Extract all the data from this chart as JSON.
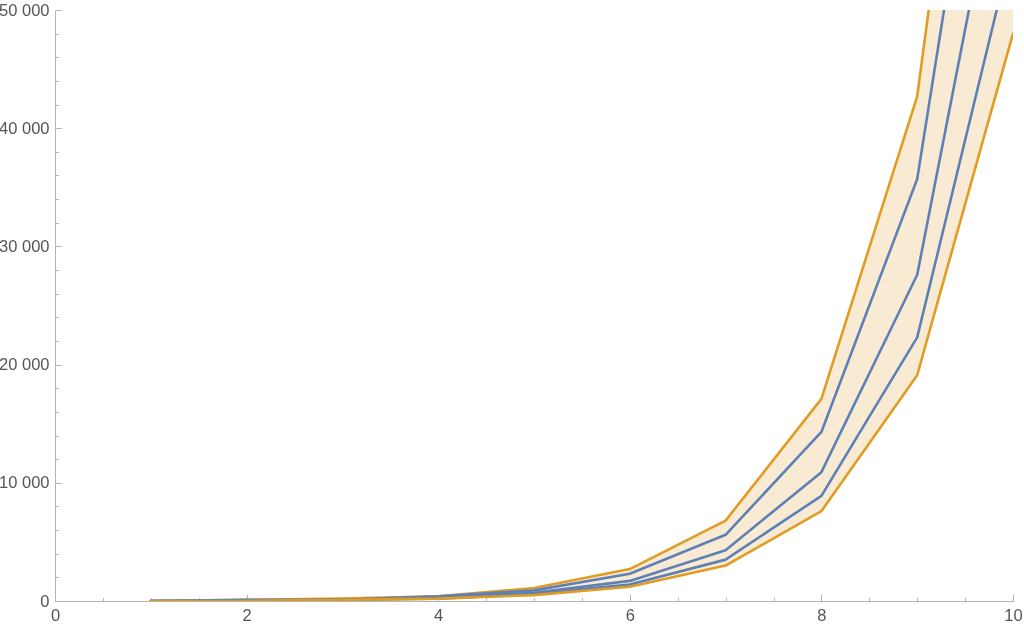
{
  "chart_data": {
    "type": "line",
    "xlim": [
      0,
      10
    ],
    "ylim": [
      0,
      50000
    ],
    "xticks": [
      0,
      {
        "value": 0.5,
        "label": null
      },
      {
        "value": 1,
        "label": null
      },
      {
        "value": 1.5,
        "label": null
      },
      2,
      {
        "value": 2.5,
        "label": null
      },
      {
        "value": 3,
        "label": null
      },
      {
        "value": 3.5,
        "label": null
      },
      4,
      {
        "value": 4.5,
        "label": null
      },
      {
        "value": 5,
        "label": null
      },
      {
        "value": 5.5,
        "label": null
      },
      6,
      {
        "value": 6.5,
        "label": null
      },
      {
        "value": 7,
        "label": null
      },
      {
        "value": 7.5,
        "label": null
      },
      8,
      {
        "value": 8.5,
        "label": null
      },
      {
        "value": 9,
        "label": null
      },
      {
        "value": 9.5,
        "label": null
      },
      10
    ],
    "yticks": [
      0,
      {
        "value": 2000,
        "label": null
      },
      {
        "value": 4000,
        "label": null
      },
      {
        "value": 6000,
        "label": null
      },
      {
        "value": 8000,
        "label": null
      },
      {
        "value": 10000,
        "label": "10 000"
      },
      {
        "value": 12000,
        "label": null
      },
      {
        "value": 14000,
        "label": null
      },
      {
        "value": 16000,
        "label": null
      },
      {
        "value": 18000,
        "label": null
      },
      {
        "value": 20000,
        "label": "20 000"
      },
      {
        "value": 22000,
        "label": null
      },
      {
        "value": 24000,
        "label": null
      },
      {
        "value": 26000,
        "label": null
      },
      {
        "value": 28000,
        "label": null
      },
      {
        "value": 30000,
        "label": "30 000"
      },
      {
        "value": 32000,
        "label": null
      },
      {
        "value": 34000,
        "label": null
      },
      {
        "value": 36000,
        "label": null
      },
      {
        "value": 38000,
        "label": null
      },
      {
        "value": 40000,
        "label": "40 000"
      },
      {
        "value": 42000,
        "label": null
      },
      {
        "value": 44000,
        "label": null
      },
      {
        "value": 46000,
        "label": null
      },
      {
        "value": 48000,
        "label": null
      },
      {
        "value": 50000,
        "label": "50 000"
      }
    ],
    "series": [
      {
        "color": "#e19c24",
        "x": [
          1,
          2,
          3,
          4,
          5,
          6,
          7,
          8,
          9,
          9.12
        ],
        "values": [
          0,
          100,
          200,
          400,
          1100,
          2700,
          6800,
          17100,
          42700,
          50000
        ]
      },
      {
        "color": "#5e81b5",
        "x": [
          1,
          2,
          3,
          4,
          5,
          6,
          7,
          8,
          9,
          9.28
        ],
        "values": [
          0,
          100,
          100,
          400,
          900,
          2300,
          5600,
          14300,
          35700,
          50000
        ]
      },
      {
        "color": "#5e81b5",
        "x": [
          1,
          2,
          3,
          4,
          5,
          6,
          7,
          8,
          9,
          9.54
        ],
        "values": [
          0,
          0,
          100,
          300,
          700,
          1700,
          4300,
          10900,
          27600,
          50000
        ]
      },
      {
        "color": "#5e81b5",
        "x": [
          1,
          2,
          3,
          4,
          5,
          6,
          7,
          8,
          9,
          9.83
        ],
        "values": [
          0,
          0,
          100,
          200,
          600,
          1400,
          3500,
          8900,
          22300,
          50000
        ]
      },
      {
        "color": "#e19c24",
        "x": [
          1,
          2,
          3,
          4,
          5,
          6,
          7,
          8,
          9,
          9.12,
          10
        ],
        "values": [
          0,
          0,
          100,
          200,
          500,
          1200,
          3000,
          7600,
          19100,
          22600,
          48000
        ],
        "lower": [
          0,
          0,
          100,
          200,
          500,
          1200,
          3000,
          7600,
          19100,
          22600,
          48000
        ],
        "upper": [
          0,
          100,
          200,
          400,
          1100,
          2700,
          6800,
          17100,
          42700,
          50000,
          50000
        ]
      }
    ],
    "grid": false
  }
}
